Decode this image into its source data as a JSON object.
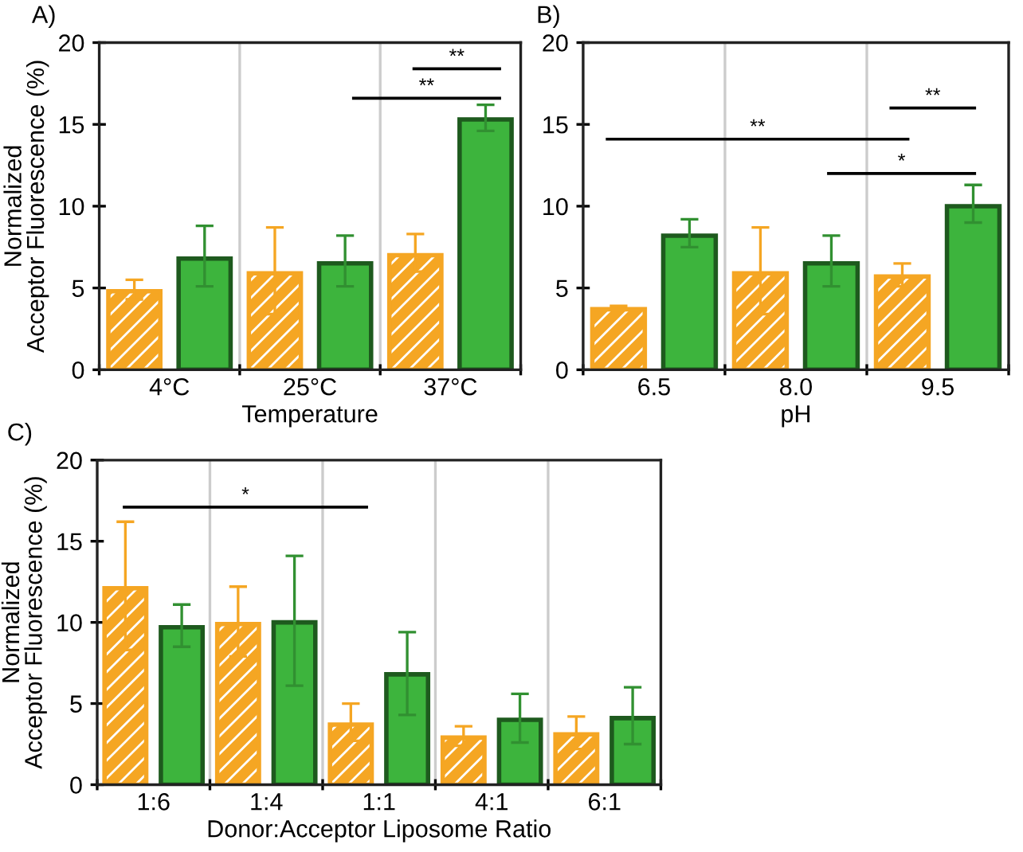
{
  "chart_data": [
    {
      "type": "bar",
      "categories": [
        "4°C",
        "25°C",
        "37°C"
      ],
      "xlabel": "Temperature",
      "ylabel": "Normalized\nAcceptor Fluorescence (%)",
      "ylim": [
        0,
        20
      ],
      "yticks": [
        0,
        5,
        10,
        15,
        20
      ],
      "grid": "x",
      "annotations": [
        "A)",
        "**",
        "**"
      ],
      "series": [
        {
          "color": "#f5a623",
          "values": [
            4.8,
            5.9,
            7.0
          ],
          "errors": [
            [
              4.3,
              5.5
            ],
            [
              3.4,
              8.7
            ],
            [
              6.0,
              8.3
            ]
          ]
        },
        {
          "color": "#3db43d",
          "values": [
            6.8,
            6.5,
            15.3
          ],
          "errors": [
            [
              5.1,
              8.8
            ],
            [
              5.1,
              8.2
            ],
            [
              14.6,
              16.2
            ]
          ]
        }
      ]
    },
    {
      "type": "bar",
      "categories": [
        "6.5",
        "8.0",
        "9.5"
      ],
      "xlabel": "pH",
      "ylim": [
        0,
        20
      ],
      "yticks": [
        0,
        5,
        10,
        15,
        20
      ],
      "grid": "x",
      "annotations": [
        "B)",
        "**",
        "*",
        "**"
      ],
      "series": [
        {
          "color": "#f5a623",
          "values": [
            3.7,
            5.9,
            5.7
          ],
          "errors": [
            [
              3.7,
              3.9
            ],
            [
              3.4,
              8.7
            ],
            [
              5.1,
              6.5
            ]
          ]
        },
        {
          "color": "#3db43d",
          "values": [
            8.2,
            6.5,
            10.0
          ],
          "errors": [
            [
              7.5,
              9.2
            ],
            [
              5.1,
              8.2
            ],
            [
              9.0,
              11.3
            ]
          ]
        }
      ]
    },
    {
      "type": "bar",
      "categories": [
        "1:6",
        "1:4",
        "1:1",
        "4:1",
        "6:1"
      ],
      "xlabel": "Donor:Acceptor Liposome Ratio",
      "ylabel": "Normalized\nAcceptor Fluorescence (%)",
      "ylim": [
        0,
        20
      ],
      "yticks": [
        0,
        5,
        10,
        15,
        20
      ],
      "grid": "x",
      "annotations": [
        "C)",
        "*"
      ],
      "series": [
        {
          "color": "#f5a623",
          "values": [
            12.1,
            9.9,
            3.7,
            2.9,
            3.1
          ],
          "errors": [
            [
              8.3,
              16.2
            ],
            [
              7.9,
              12.2
            ],
            [
              2.7,
              5.0
            ],
            [
              2.4,
              3.6
            ],
            [
              2.2,
              4.2
            ]
          ]
        },
        {
          "color": "#3db43d",
          "values": [
            9.7,
            10.0,
            6.8,
            4.0,
            4.1
          ],
          "errors": [
            [
              8.5,
              11.1
            ],
            [
              6.1,
              14.1
            ],
            [
              4.3,
              9.4
            ],
            [
              2.6,
              5.6
            ],
            [
              2.5,
              6.0
            ]
          ]
        }
      ]
    }
  ]
}
